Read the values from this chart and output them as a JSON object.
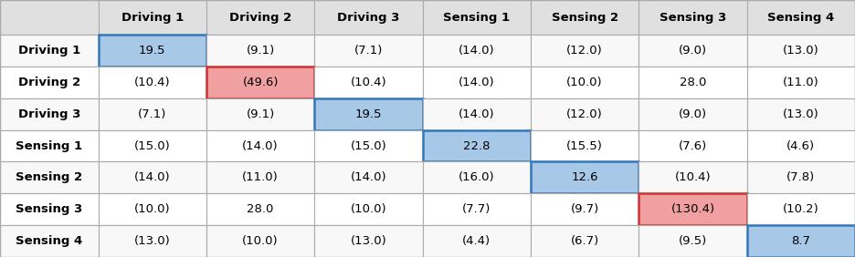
{
  "row_labels": [
    "Driving 1",
    "Driving 2",
    "Driving 3",
    "Sensing 1",
    "Sensing 2",
    "Sensing 3",
    "Sensing 4"
  ],
  "col_labels": [
    "Driving 1",
    "Driving 2",
    "Driving 3",
    "Sensing 1",
    "Sensing 2",
    "Sensing 3",
    "Sensing 4"
  ],
  "cell_values": [
    [
      "19.5",
      "(9.1)",
      "(7.1)",
      "(14.0)",
      "(12.0)",
      "(9.0)",
      "(13.0)"
    ],
    [
      "(10.4)",
      "(49.6)",
      "(10.4)",
      "(14.0)",
      "(10.0)",
      "28.0",
      "(11.0)"
    ],
    [
      "(7.1)",
      "(9.1)",
      "19.5",
      "(14.0)",
      "(12.0)",
      "(9.0)",
      "(13.0)"
    ],
    [
      "(15.0)",
      "(14.0)",
      "(15.0)",
      "22.8",
      "(15.5)",
      "(7.6)",
      "(4.6)"
    ],
    [
      "(14.0)",
      "(11.0)",
      "(14.0)",
      "(16.0)",
      "12.6",
      "(10.4)",
      "(7.8)"
    ],
    [
      "(10.0)",
      "28.0",
      "(10.0)",
      "(7.7)",
      "(9.7)",
      "(130.4)",
      "(10.2)"
    ],
    [
      "(13.0)",
      "(10.0)",
      "(13.0)",
      "(4.4)",
      "(6.7)",
      "(9.5)",
      "8.7"
    ]
  ],
  "cell_bg": [
    [
      "blue_highlight",
      "none",
      "none",
      "none",
      "none",
      "none",
      "none"
    ],
    [
      "none",
      "red_highlight",
      "none",
      "none",
      "none",
      "none",
      "none"
    ],
    [
      "none",
      "none",
      "blue_highlight",
      "none",
      "none",
      "none",
      "none"
    ],
    [
      "none",
      "none",
      "none",
      "blue_highlight",
      "none",
      "none",
      "none"
    ],
    [
      "none",
      "none",
      "none",
      "none",
      "blue_highlight",
      "none",
      "none"
    ],
    [
      "none",
      "none",
      "none",
      "none",
      "none",
      "red_highlight",
      "none"
    ],
    [
      "none",
      "none",
      "none",
      "none",
      "none",
      "none",
      "blue_highlight"
    ]
  ],
  "blue_color": "#a8c8e8",
  "red_color": "#f0a0a0",
  "header_bg": "#e0e0e0",
  "row_header_bg": "#f0f0f0",
  "cell_bg_plain": "#ffffff",
  "alt_row_bg": "#f7f7f7",
  "border_color": "#aaaaaa",
  "highlight_border_blue": "#3377bb",
  "highlight_border_red": "#cc3333",
  "header_font_size": 9.5,
  "cell_font_size": 9.5,
  "row_label_font_size": 9.5
}
